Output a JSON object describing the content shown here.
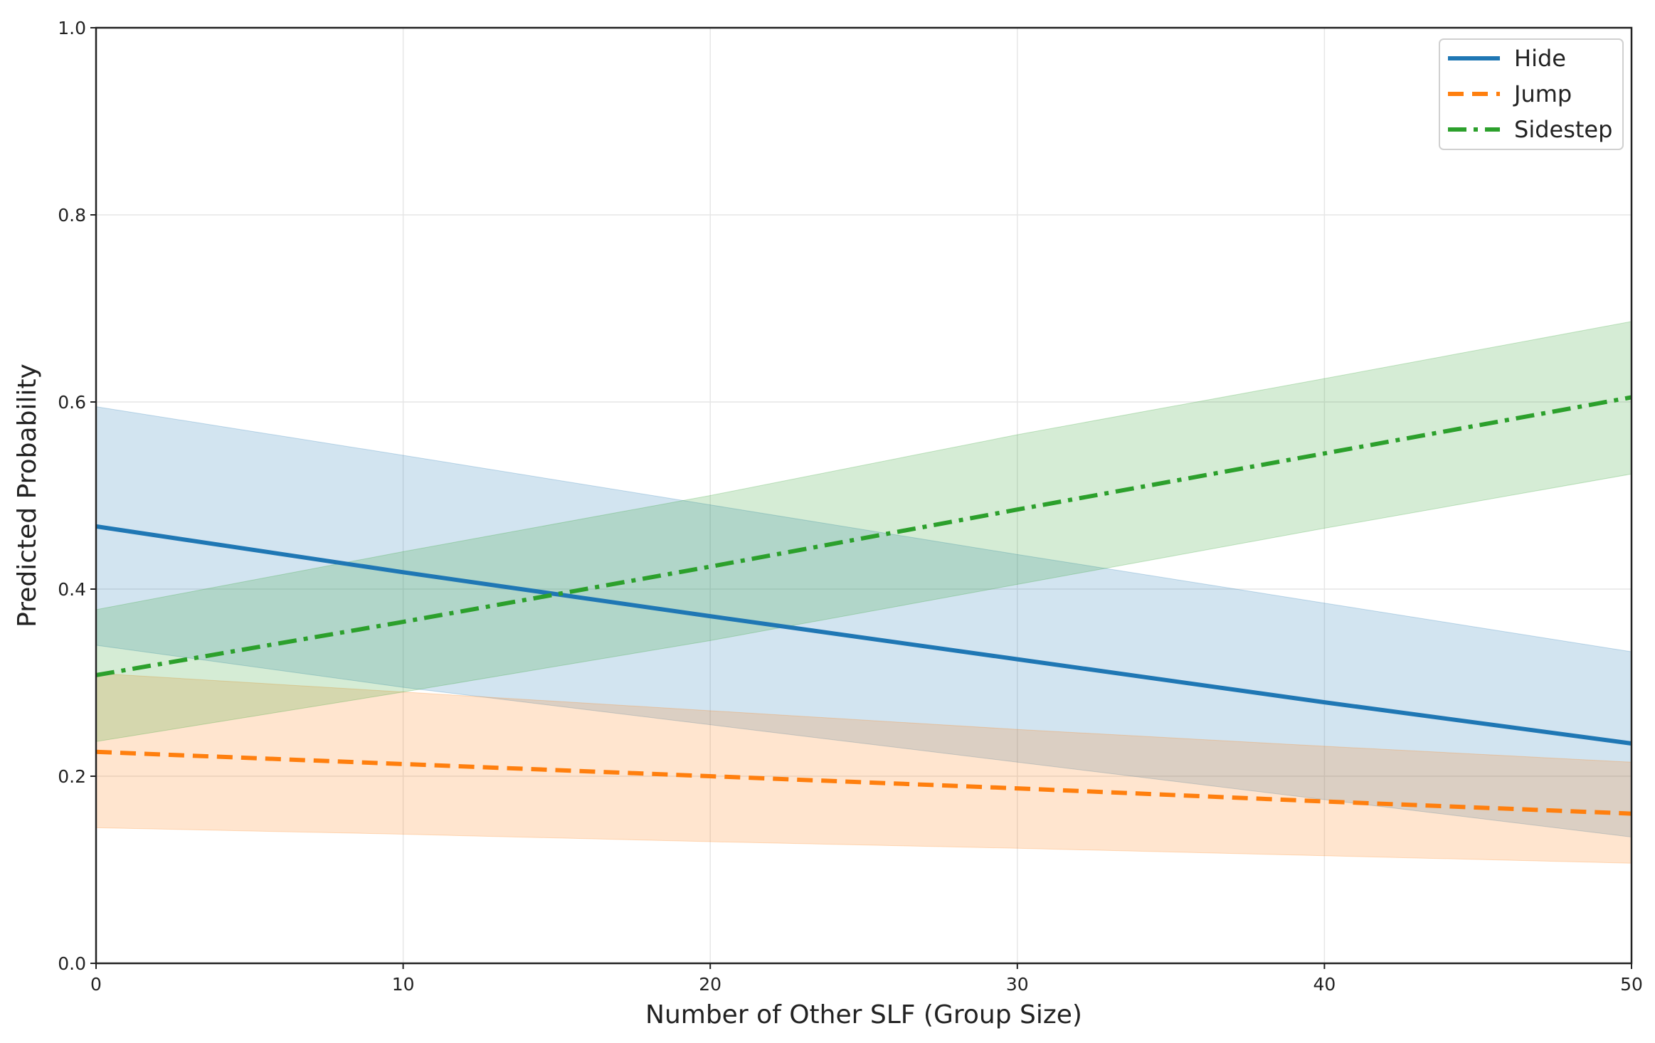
{
  "chart_data": {
    "type": "line",
    "title": "",
    "xlabel": "Number of Other SLF (Group Size)",
    "ylabel": "Predicted Probability",
    "xlim": [
      0,
      50
    ],
    "ylim": [
      0,
      1.0
    ],
    "xticks": [
      "0",
      "10",
      "20",
      "30",
      "40",
      "50"
    ],
    "yticks": [
      "0.0",
      "0.2",
      "0.4",
      "0.6",
      "0.8",
      "1.0"
    ],
    "grid": true,
    "legend_position": "top-right",
    "x": [
      0,
      10,
      20,
      30,
      40,
      50
    ],
    "series": [
      {
        "name": "Hide",
        "color": "#1f77b4",
        "style": "solid",
        "values": [
          0.467,
          0.418,
          0.371,
          0.325,
          0.279,
          0.235
        ],
        "ci_upper": [
          0.595,
          0.543,
          0.49,
          0.437,
          0.385,
          0.333
        ],
        "ci_lower": [
          0.34,
          0.295,
          0.255,
          0.215,
          0.175,
          0.135
        ]
      },
      {
        "name": "Jump",
        "color": "#ff7f0e",
        "style": "dashed",
        "values": [
          0.226,
          0.213,
          0.2,
          0.187,
          0.173,
          0.16
        ],
        "ci_upper": [
          0.31,
          0.29,
          0.27,
          0.25,
          0.232,
          0.215
        ],
        "ci_lower": [
          0.145,
          0.138,
          0.13,
          0.123,
          0.115,
          0.107
        ]
      },
      {
        "name": "Sidestep",
        "color": "#2ca02c",
        "style": "dashdot",
        "values": [
          0.308,
          0.365,
          0.424,
          0.485,
          0.545,
          0.605
        ],
        "ci_upper": [
          0.378,
          0.44,
          0.5,
          0.565,
          0.625,
          0.686
        ],
        "ci_lower": [
          0.237,
          0.29,
          0.345,
          0.405,
          0.465,
          0.523
        ]
      }
    ]
  }
}
